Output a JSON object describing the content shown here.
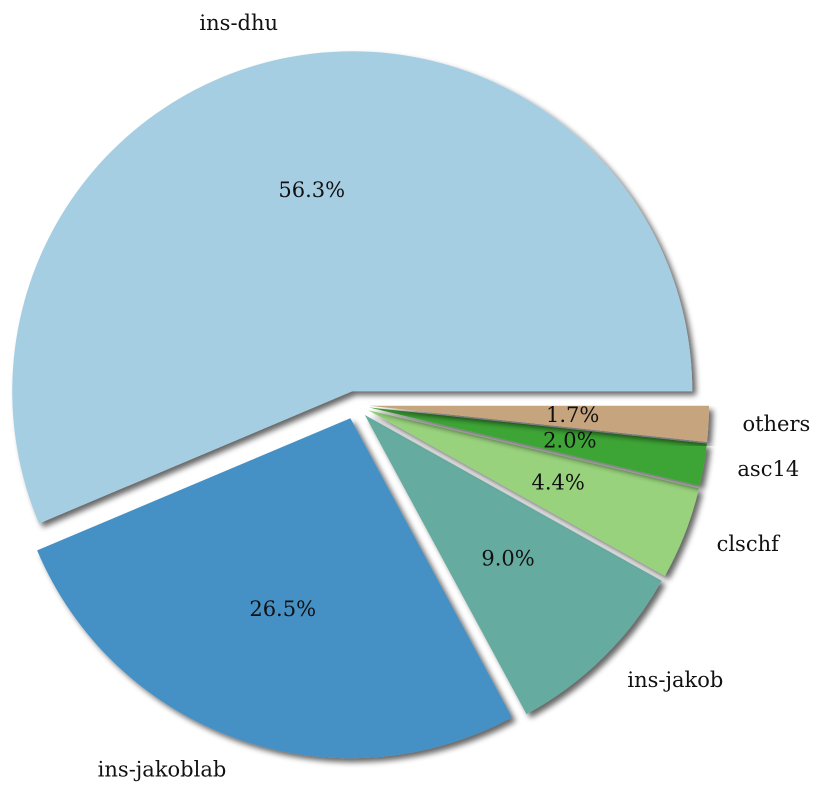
{
  "chart_data": {
    "type": "pie",
    "categories": [
      "ins-dhu",
      "ins-jakoblab",
      "ins-jakob",
      "clschf",
      "asc14",
      "others"
    ],
    "values": [
      56.3,
      26.5,
      9.0,
      4.4,
      2.0,
      1.7
    ],
    "value_labels": [
      "56.3%",
      "26.5%",
      "9.0%",
      "4.4%",
      "2.0%",
      "1.7%"
    ],
    "colors": [
      "#a6cee3",
      "#4590c4",
      "#66aba0",
      "#98d27b",
      "#3ea535",
      "#c5a47e"
    ]
  }
}
